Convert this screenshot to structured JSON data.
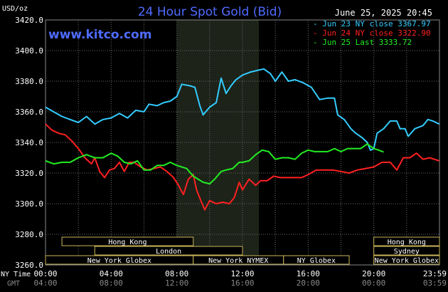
{
  "title": "24 Hour Spot Gold (Bid)",
  "unit": "USD/oz",
  "timestamp": "June 25, 2025 20:45",
  "website": "www.kitco.com",
  "colors": {
    "background": "#000000",
    "title": "#4f6bff",
    "website": "#4f6bff",
    "grid": "#6a6a6a",
    "night_shade": "#1d2319",
    "session_box": "#c9b55a",
    "session_text": "#ffffff",
    "axis_text": "#ffffff",
    "gmt_text": "#8a8a8a"
  },
  "legend": [
    {
      "label": "Jun 23 NY close 3367.97",
      "color": "#33ccff"
    },
    {
      "label": "Jun 24 NY close 3322.90",
      "color": "#ff2020"
    },
    {
      "label": "Jun 25 Last 3333.72",
      "color": "#22ee22"
    }
  ],
  "sessions": [
    {
      "label": "Hong Kong",
      "row": 0,
      "start": 1.0,
      "end": 9.0
    },
    {
      "label": "Hong Kong",
      "row": 0,
      "start": 20.0,
      "end": 24.0
    },
    {
      "label": "London",
      "row": 1,
      "start": 3.0,
      "end": 12.0
    },
    {
      "label": "Sydney",
      "row": 1,
      "start": 20.0,
      "end": 24.0
    },
    {
      "label": "New York Globex",
      "row": 2,
      "start": 0.0,
      "end": 9.0
    },
    {
      "label": "New York NYMEX",
      "row": 2,
      "start": 9.0,
      "end": 14.5
    },
    {
      "label": "NY Globex",
      "row": 2,
      "start": 14.5,
      "end": 18.5
    },
    {
      "label": "New York Globex",
      "row": 2,
      "start": 20.0,
      "end": 24.0
    }
  ],
  "axis_labels": {
    "ny_time": "NY Time",
    "gmt": "GMT"
  },
  "chart_data": {
    "type": "line",
    "title": "24 Hour Spot Gold (Bid)",
    "ylabel": "USD/oz",
    "ylim": [
      3260,
      3420
    ],
    "yticks": [
      "3420.0",
      "3400.0",
      "3380.0",
      "3360.0",
      "3340.0",
      "3320.0",
      "3300.0",
      "3280.0",
      "3260.0"
    ],
    "xlim": [
      0,
      24
    ],
    "x_ticks_ny": [
      "00:00",
      "04:00",
      "08:00",
      "12:00",
      "16:00",
      "20:00",
      "23:59"
    ],
    "x_ticks_gmt": [
      "04:00",
      "08:00",
      "12:00",
      "16:00",
      "20:00",
      "00:00",
      "03:59"
    ],
    "x_tick_positions_hours": [
      0,
      4,
      8,
      12,
      16,
      20,
      23.983
    ],
    "shaded_region_hours": [
      8.0,
      13.0
    ],
    "grid": true,
    "series": [
      {
        "name": "Jun 23 NY close 3367.97",
        "color": "#33ccff",
        "points": [
          [
            0.0,
            3363
          ],
          [
            0.5,
            3360
          ],
          [
            1.0,
            3357
          ],
          [
            1.5,
            3355
          ],
          [
            2.0,
            3353
          ],
          [
            2.5,
            3357
          ],
          [
            3.0,
            3352
          ],
          [
            3.5,
            3355
          ],
          [
            4.0,
            3356
          ],
          [
            4.5,
            3359
          ],
          [
            5.0,
            3356
          ],
          [
            5.5,
            3361
          ],
          [
            6.0,
            3360
          ],
          [
            6.3,
            3365
          ],
          [
            6.8,
            3364
          ],
          [
            7.2,
            3366
          ],
          [
            7.6,
            3367
          ],
          [
            8.0,
            3370
          ],
          [
            8.3,
            3378
          ],
          [
            8.8,
            3377
          ],
          [
            9.1,
            3376
          ],
          [
            9.4,
            3364
          ],
          [
            9.6,
            3358
          ],
          [
            10.0,
            3363
          ],
          [
            10.4,
            3366
          ],
          [
            10.7,
            3382
          ],
          [
            11.0,
            3372
          ],
          [
            11.3,
            3377
          ],
          [
            11.6,
            3381
          ],
          [
            12.0,
            3384
          ],
          [
            12.5,
            3386
          ],
          [
            12.9,
            3387
          ],
          [
            13.3,
            3388
          ],
          [
            13.7,
            3385
          ],
          [
            14.0,
            3380
          ],
          [
            14.4,
            3386
          ],
          [
            14.8,
            3380
          ],
          [
            15.2,
            3381
          ],
          [
            15.7,
            3379
          ],
          [
            16.2,
            3376
          ],
          [
            16.7,
            3368
          ],
          [
            17.2,
            3369
          ],
          [
            17.6,
            3369
          ],
          [
            17.8,
            3358
          ],
          [
            18.2,
            3355
          ],
          [
            18.6,
            3349
          ],
          [
            18.9,
            3346
          ],
          [
            19.3,
            3343
          ],
          [
            19.6,
            3340
          ],
          [
            19.8,
            3335
          ],
          [
            20.0,
            3336
          ],
          [
            20.2,
            3346
          ],
          [
            20.6,
            3349
          ],
          [
            21.0,
            3354
          ],
          [
            21.4,
            3354
          ],
          [
            21.6,
            3349
          ],
          [
            21.9,
            3349
          ],
          [
            22.1,
            3344
          ],
          [
            22.5,
            3349
          ],
          [
            23.0,
            3351
          ],
          [
            23.3,
            3355
          ],
          [
            23.6,
            3354
          ],
          [
            23.983,
            3352
          ]
        ]
      },
      {
        "name": "Jun 24 NY close 3322.90",
        "color": "#ff2020",
        "points": [
          [
            0.0,
            3352
          ],
          [
            0.4,
            3348
          ],
          [
            0.8,
            3346
          ],
          [
            1.2,
            3345
          ],
          [
            1.6,
            3341
          ],
          [
            2.0,
            3336
          ],
          [
            2.4,
            3330
          ],
          [
            2.8,
            3326
          ],
          [
            3.0,
            3330
          ],
          [
            3.3,
            3321
          ],
          [
            3.6,
            3317
          ],
          [
            3.9,
            3322
          ],
          [
            4.2,
            3323
          ],
          [
            4.5,
            3327
          ],
          [
            4.8,
            3321
          ],
          [
            5.1,
            3327
          ],
          [
            5.4,
            3327
          ],
          [
            5.8,
            3324
          ],
          [
            6.2,
            3322
          ],
          [
            6.6,
            3323
          ],
          [
            7.0,
            3324
          ],
          [
            7.4,
            3321
          ],
          [
            7.8,
            3317
          ],
          [
            8.1,
            3312
          ],
          [
            8.4,
            3306
          ],
          [
            8.7,
            3316
          ],
          [
            9.0,
            3319
          ],
          [
            9.2,
            3309
          ],
          [
            9.5,
            3301
          ],
          [
            9.7,
            3296
          ],
          [
            10.0,
            3302
          ],
          [
            10.4,
            3300
          ],
          [
            10.8,
            3301
          ],
          [
            11.2,
            3300
          ],
          [
            11.5,
            3304
          ],
          [
            11.8,
            3314
          ],
          [
            12.0,
            3309
          ],
          [
            12.4,
            3316
          ],
          [
            12.8,
            3312
          ],
          [
            13.1,
            3315
          ],
          [
            13.5,
            3315
          ],
          [
            13.9,
            3318
          ],
          [
            14.3,
            3317
          ],
          [
            14.7,
            3317
          ],
          [
            15.1,
            3317
          ],
          [
            15.6,
            3317
          ],
          [
            16.0,
            3319
          ],
          [
            16.5,
            3322
          ],
          [
            17.0,
            3322
          ],
          [
            17.5,
            3322
          ],
          [
            18.0,
            3321
          ],
          [
            18.5,
            3320
          ],
          [
            19.0,
            3322
          ],
          [
            19.5,
            3323
          ],
          [
            20.0,
            3324
          ],
          [
            20.5,
            3327
          ],
          [
            21.0,
            3327
          ],
          [
            21.4,
            3322
          ],
          [
            21.8,
            3330
          ],
          [
            22.2,
            3330
          ],
          [
            22.6,
            3333
          ],
          [
            23.0,
            3329
          ],
          [
            23.4,
            3330
          ],
          [
            23.983,
            3328
          ]
        ]
      },
      {
        "name": "Jun 25 Last 3333.72",
        "color": "#22ee22",
        "points": [
          [
            0.0,
            3328
          ],
          [
            0.5,
            3326
          ],
          [
            1.0,
            3327
          ],
          [
            1.5,
            3327
          ],
          [
            2.0,
            3330
          ],
          [
            2.5,
            3332
          ],
          [
            3.0,
            3330
          ],
          [
            3.5,
            3330
          ],
          [
            4.0,
            3333
          ],
          [
            4.4,
            3331
          ],
          [
            4.8,
            3327
          ],
          [
            5.2,
            3326
          ],
          [
            5.6,
            3328
          ],
          [
            6.0,
            3322
          ],
          [
            6.4,
            3322
          ],
          [
            6.8,
            3325
          ],
          [
            7.2,
            3325
          ],
          [
            7.6,
            3327
          ],
          [
            8.0,
            3325
          ],
          [
            8.3,
            3324
          ],
          [
            8.6,
            3323
          ],
          [
            9.0,
            3318
          ],
          [
            9.3,
            3316
          ],
          [
            9.6,
            3314
          ],
          [
            10.0,
            3313
          ],
          [
            10.3,
            3316
          ],
          [
            10.7,
            3321
          ],
          [
            11.0,
            3322
          ],
          [
            11.4,
            3323
          ],
          [
            11.8,
            3327
          ],
          [
            12.0,
            3327
          ],
          [
            12.4,
            3328
          ],
          [
            12.8,
            3332
          ],
          [
            13.2,
            3335
          ],
          [
            13.6,
            3334
          ],
          [
            14.0,
            3329
          ],
          [
            14.4,
            3330
          ],
          [
            14.8,
            3330
          ],
          [
            15.2,
            3329
          ],
          [
            15.6,
            3333
          ],
          [
            16.0,
            3335
          ],
          [
            16.4,
            3334
          ],
          [
            16.8,
            3334
          ],
          [
            17.2,
            3334
          ],
          [
            17.6,
            3336
          ],
          [
            18.0,
            3334
          ],
          [
            18.4,
            3336
          ],
          [
            18.8,
            3336
          ],
          [
            19.2,
            3336
          ],
          [
            19.6,
            3339
          ],
          [
            20.0,
            3336
          ],
          [
            20.3,
            3335
          ],
          [
            20.6,
            3333.72
          ]
        ]
      }
    ]
  }
}
